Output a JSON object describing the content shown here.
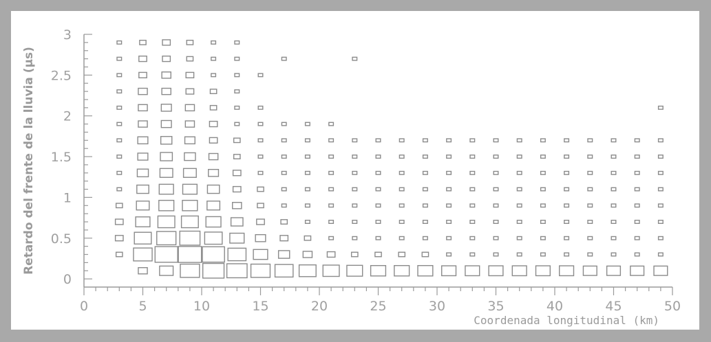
{
  "chart_data": {
    "type": "scatter",
    "marker": "box",
    "xlabel": "Coordenada longitudinal (km)",
    "ylabel": "Retardo del frente de la lluvia (µs)",
    "xlim": [
      0,
      50
    ],
    "ylim": [
      -0.1,
      3
    ],
    "xticks": [
      0,
      5,
      10,
      15,
      20,
      25,
      30,
      35,
      40,
      45,
      50
    ],
    "xtick_labels": [
      "0",
      "5",
      "10",
      "15",
      "20",
      "25",
      "30",
      "35",
      "40",
      "45",
      "50"
    ],
    "yticks": [
      0,
      0.5,
      1,
      1.5,
      2,
      2.5,
      3
    ],
    "ytick_labels": [
      "0",
      "0.5",
      "1",
      "1.5",
      "2",
      "2.5",
      "3"
    ],
    "grid": false,
    "bin_x": [
      3,
      5,
      7,
      9,
      11,
      13,
      15,
      17,
      19,
      21,
      23,
      25,
      27,
      29,
      31,
      33,
      35,
      37,
      39,
      41,
      43,
      45,
      47,
      49
    ],
    "bin_y": [
      0.1,
      0.3,
      0.5,
      0.7,
      0.9,
      1.1,
      1.3,
      1.5,
      1.7,
      1.9,
      2.1,
      2.3,
      2.5,
      2.7,
      2.9
    ],
    "weights": [
      [
        0,
        4,
        9,
        18,
        22,
        20,
        18,
        16,
        14,
        13,
        12,
        11,
        11,
        11,
        10,
        10,
        10,
        10,
        10,
        10,
        9,
        9,
        9,
        9
      ],
      [
        2,
        17,
        25,
        26,
        24,
        16,
        10,
        6,
        4,
        3,
        2,
        2,
        2,
        2,
        1,
        1,
        1,
        1,
        1,
        1,
        1,
        1,
        1,
        1
      ],
      [
        3,
        14,
        18,
        20,
        15,
        10,
        5,
        3,
        2,
        1,
        1,
        1,
        1,
        1,
        1,
        1,
        1,
        1,
        1,
        1,
        1,
        1,
        1,
        1
      ],
      [
        3,
        10,
        14,
        14,
        11,
        7,
        3,
        2,
        1,
        1,
        1,
        1,
        1,
        1,
        1,
        1,
        1,
        1,
        1,
        1,
        1,
        1,
        1,
        1
      ],
      [
        2,
        8,
        11,
        11,
        8,
        4,
        2,
        1,
        1,
        1,
        1,
        1,
        1,
        1,
        1,
        1,
        1,
        1,
        1,
        1,
        1,
        1,
        1,
        1
      ],
      [
        1,
        7,
        10,
        10,
        7,
        3,
        2,
        1,
        1,
        1,
        1,
        1,
        1,
        1,
        1,
        1,
        1,
        1,
        1,
        1,
        1,
        1,
        1,
        1
      ],
      [
        1,
        6,
        8,
        8,
        5,
        3,
        1,
        1,
        1,
        1,
        1,
        1,
        1,
        1,
        1,
        1,
        1,
        1,
        1,
        1,
        1,
        1,
        1,
        1
      ],
      [
        1,
        5,
        7,
        6,
        4,
        2,
        1,
        1,
        1,
        1,
        1,
        1,
        1,
        1,
        1,
        1,
        1,
        1,
        1,
        1,
        1,
        1,
        1,
        1
      ],
      [
        1,
        5,
        6,
        5,
        3,
        2,
        1,
        1,
        1,
        1,
        1,
        1,
        1,
        1,
        1,
        1,
        1,
        1,
        1,
        1,
        1,
        1,
        1,
        1
      ],
      [
        1,
        4,
        5,
        4,
        3,
        1,
        1,
        1,
        1,
        1,
        0,
        0,
        0,
        0,
        0,
        0,
        0,
        0,
        0,
        0,
        0,
        0,
        0,
        0
      ],
      [
        1,
        4,
        5,
        4,
        2,
        1,
        1,
        0,
        0,
        0,
        0,
        0,
        0,
        0,
        0,
        0,
        0,
        0,
        0,
        0,
        0,
        0,
        0,
        1
      ],
      [
        1,
        4,
        4,
        3,
        2,
        1,
        0,
        0,
        0,
        0,
        0,
        0,
        0,
        0,
        0,
        0,
        0,
        0,
        0,
        0,
        0,
        0,
        0,
        0
      ],
      [
        1,
        3,
        4,
        3,
        1,
        1,
        1,
        0,
        0,
        0,
        0,
        0,
        0,
        0,
        0,
        0,
        0,
        0,
        0,
        0,
        0,
        0,
        0,
        0
      ],
      [
        1,
        3,
        3,
        2,
        1,
        1,
        0,
        1,
        0,
        0,
        1,
        0,
        0,
        0,
        0,
        0,
        0,
        0,
        0,
        0,
        0,
        0,
        0,
        0
      ],
      [
        1,
        2,
        3,
        2,
        1,
        1,
        0,
        0,
        0,
        0,
        0,
        0,
        0,
        0,
        0,
        0,
        0,
        0,
        0,
        0,
        0,
        0,
        0,
        0
      ]
    ],
    "colors": {
      "marker_stroke": "#8a8a8a",
      "axis": "#9a9a9a",
      "text": "#a0a0a0",
      "background": "#ffffff",
      "frame": "#a9a9a9"
    }
  }
}
